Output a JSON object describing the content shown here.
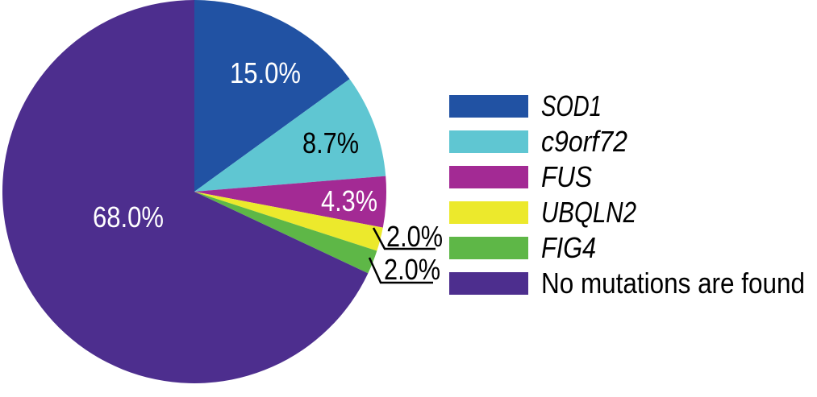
{
  "chart_data": {
    "type": "pie",
    "title": "",
    "unit": "%",
    "start_angle_deg": 0,
    "direction": "clockwise",
    "legend_position": "right",
    "background": "#ffffff",
    "text_color": "#000000",
    "leader_line_color": "#000000",
    "slices": [
      {
        "label": "SOD1",
        "value": 15.0,
        "pct_label": "15.0%",
        "color": "#2152a3",
        "pct_label_color": "#ffffff",
        "pct_label_placement": "inside",
        "label_italic": true
      },
      {
        "label": "c9orf72",
        "value": 8.7,
        "pct_label": "8.7%",
        "color": "#5fc6d2",
        "pct_label_color": "#000000",
        "pct_label_placement": "inside",
        "label_italic": true
      },
      {
        "label": "FUS",
        "value": 4.3,
        "pct_label": "4.3%",
        "color": "#a32a94",
        "pct_label_color": "#ffffff",
        "pct_label_placement": "inside",
        "label_italic": true
      },
      {
        "label": "UBQLN2",
        "value": 2.0,
        "pct_label": "2.0%",
        "color": "#ece92c",
        "pct_label_color": "#000000",
        "pct_label_placement": "outside",
        "label_italic": true
      },
      {
        "label": "FIG4",
        "value": 2.0,
        "pct_label": "2.0%",
        "color": "#5eb747",
        "pct_label_color": "#000000",
        "pct_label_placement": "outside",
        "label_italic": true
      },
      {
        "label": "No mutations are found",
        "value": 68.0,
        "pct_label": "68.0%",
        "color": "#4d2e8e",
        "pct_label_color": "#ffffff",
        "pct_label_placement": "inside",
        "label_italic": false
      }
    ]
  }
}
